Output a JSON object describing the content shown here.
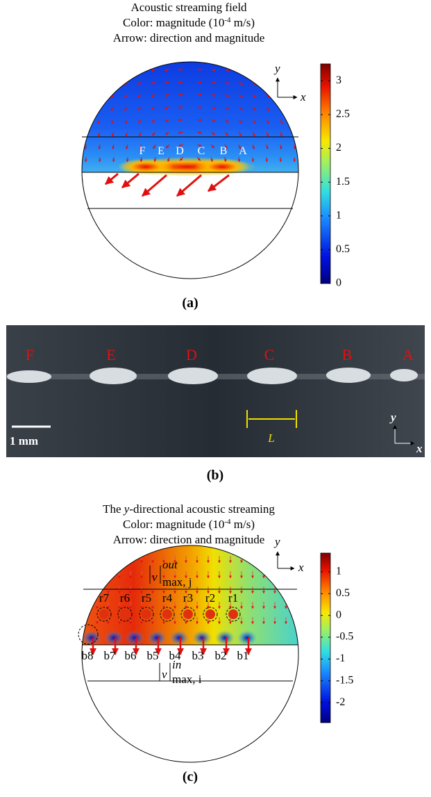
{
  "panel_a": {
    "title": [
      "Acoustic streaming field",
      [
        "Color: magnitude (10",
        "-4",
        " m/s)"
      ],
      "Arrow: direction and magnitude"
    ],
    "point_labels": [
      "F",
      "E",
      "D",
      "C",
      "B",
      "A"
    ],
    "axis_labels": [
      "y",
      "x"
    ],
    "colorbar": {
      "lim": [
        0,
        3.25
      ],
      "ticks": [
        0,
        0.5,
        1,
        1.5,
        2,
        2.5,
        3
      ]
    },
    "caption": "(a)"
  },
  "panel_b": {
    "point_labels": [
      "F",
      "E",
      "D",
      "C",
      "B",
      "A"
    ],
    "scale_bar": "1 mm",
    "length_label": "L",
    "axis_labels": [
      "y",
      "x"
    ],
    "caption": "(b)"
  },
  "panel_c": {
    "title": [
      [
        "The ",
        "y",
        "-directional acoustic streaming"
      ],
      [
        "Color: magnitude (10",
        "-4",
        " m/s)"
      ],
      "Arrow: direction and magnitude"
    ],
    "top_labels": [
      "r7",
      "r6",
      "r5",
      "r4",
      "r3",
      "r2",
      "r1"
    ],
    "bottom_labels": [
      "b8",
      "b7",
      "b6",
      "b5",
      "b4",
      "b3",
      "b2",
      "b1"
    ],
    "annotations": [
      {
        "base": "v",
        "sup": "out",
        "sub": "max, j"
      },
      {
        "base": "v",
        "sup": "in",
        "sub": "max, i"
      }
    ],
    "axis_labels": [
      "y",
      "x"
    ],
    "colorbar": {
      "lim": [
        -2.46,
        1.43
      ],
      "ticks": [
        1,
        0.5,
        0,
        -0.5,
        -1,
        -1.5,
        -2
      ]
    },
    "caption": "(c)"
  }
}
